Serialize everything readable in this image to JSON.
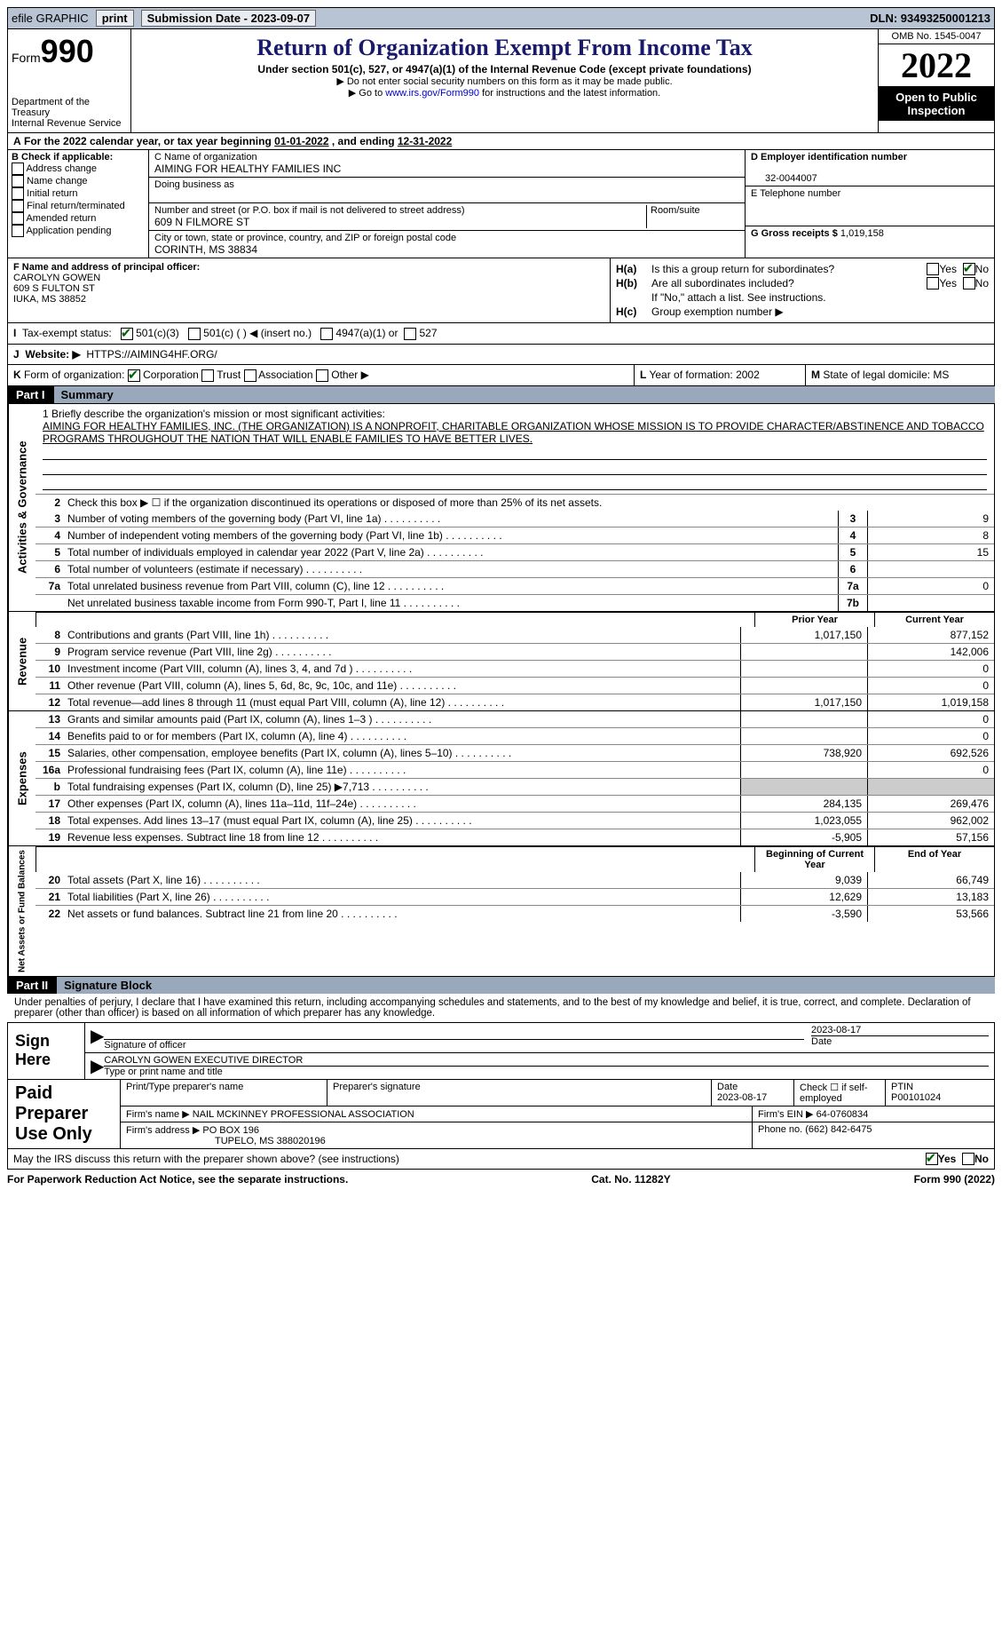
{
  "topbar": {
    "efile": "efile GRAPHIC",
    "print": "print",
    "subdate_label": "Submission Date - 2023-09-07",
    "dln_label": "DLN: 93493250001213"
  },
  "header": {
    "form_prefix": "Form",
    "form_number": "990",
    "dept": "Department of the Treasury",
    "irs": "Internal Revenue Service",
    "title": "Return of Organization Exempt From Income Tax",
    "subtitle": "Under section 501(c), 527, or 4947(a)(1) of the Internal Revenue Code (except private foundations)",
    "note1": "▶ Do not enter social security numbers on this form as it may be made public.",
    "note2_pre": "▶ Go to ",
    "note2_link": "www.irs.gov/Form990",
    "note2_post": " for instructions and the latest information.",
    "omb": "OMB No. 1545-0047",
    "year": "2022",
    "inspect": "Open to Public Inspection"
  },
  "lineA": {
    "text_a": "A",
    "text": "For the 2022 calendar year, or tax year beginning ",
    "beg": "01-01-2022",
    "mid": " , and ending ",
    "end": "12-31-2022"
  },
  "colB": {
    "header": "B Check if applicable:",
    "opts": [
      "Address change",
      "Name change",
      "Initial return",
      "Final return/terminated",
      "Amended return",
      "Application pending"
    ]
  },
  "colC": {
    "name_label": "C Name of organization",
    "name": "AIMING FOR HEALTHY FAMILIES INC",
    "dba_label": "Doing business as",
    "addr_label": "Number and street (or P.O. box if mail is not delivered to street address)",
    "room_label": "Room/suite",
    "addr": "609 N FILMORE ST",
    "city_label": "City or town, state or province, country, and ZIP or foreign postal code",
    "city": "CORINTH, MS  38834"
  },
  "colDE": {
    "d_label": "D Employer identification number",
    "d_val": "32-0044007",
    "e_label": "E Telephone number",
    "g_label": "G Gross receipts $",
    "g_val": "1,019,158"
  },
  "colF": {
    "label": "F  Name and address of principal officer:",
    "name": "CAROLYN GOWEN",
    "addr": "609 S FULTON ST",
    "city": "IUKA, MS  38852"
  },
  "colH": {
    "a_label": "H(a)",
    "a_text": "Is this a group return for subordinates?",
    "a_yes": "Yes",
    "a_no": "No",
    "b_label": "H(b)",
    "b_text": "Are all subordinates included?",
    "b_note": "If \"No,\" attach a list. See instructions.",
    "c_label": "H(c)",
    "c_text": "Group exemption number ▶"
  },
  "lineI": {
    "label": "I",
    "text": "Tax-exempt status:",
    "o1": "501(c)(3)",
    "o2": "501(c) (  ) ◀ (insert no.)",
    "o3": "4947(a)(1) or",
    "o4": "527"
  },
  "lineJ": {
    "label": "J",
    "text": "Website: ▶",
    "val": "HTTPS://AIMING4HF.ORG/"
  },
  "lineK": {
    "label": "K",
    "text": "Form of organization:",
    "o1": "Corporation",
    "o2": "Trust",
    "o3": "Association",
    "o4": "Other ▶"
  },
  "lineL": {
    "label": "L",
    "text": "Year of formation: 2002"
  },
  "lineM": {
    "label": "M",
    "text": "State of legal domicile: MS"
  },
  "part1": {
    "num": "Part I",
    "title": "Summary"
  },
  "vlabels": {
    "act": "Activities & Governance",
    "rev": "Revenue",
    "exp": "Expenses",
    "net": "Net Assets or Fund Balances"
  },
  "mission": {
    "q": "1  Briefly describe the organization's mission or most significant activities:",
    "text": "AIMING FOR HEALTHY FAMILIES, INC. (THE ORGANIZATION) IS A NONPROFIT, CHARITABLE ORGANIZATION WHOSE MISSION IS TO PROVIDE CHARACTER/ABSTINENCE AND TOBACCO PROGRAMS THROUGHOUT THE NATION THAT WILL ENABLE FAMILIES TO HAVE BETTER LIVES."
  },
  "summary": {
    "line2": "Check this box ▶ ☐ if the organization discontinued its operations or disposed of more than 25% of its net assets.",
    "rows_ag": [
      {
        "n": "3",
        "d": "Number of voting members of the governing body (Part VI, line 1a)",
        "b": "3",
        "v": "9"
      },
      {
        "n": "4",
        "d": "Number of independent voting members of the governing body (Part VI, line 1b)",
        "b": "4",
        "v": "8"
      },
      {
        "n": "5",
        "d": "Total number of individuals employed in calendar year 2022 (Part V, line 2a)",
        "b": "5",
        "v": "15"
      },
      {
        "n": "6",
        "d": "Total number of volunteers (estimate if necessary)",
        "b": "6",
        "v": ""
      },
      {
        "n": "7a",
        "d": "Total unrelated business revenue from Part VIII, column (C), line 12",
        "b": "7a",
        "v": "0"
      },
      {
        "n": "",
        "d": "Net unrelated business taxable income from Form 990-T, Part I, line 11",
        "b": "7b",
        "v": ""
      }
    ],
    "col_prior": "Prior Year",
    "col_current": "Current Year",
    "rows_rev": [
      {
        "n": "8",
        "d": "Contributions and grants (Part VIII, line 1h)",
        "p": "1,017,150",
        "c": "877,152"
      },
      {
        "n": "9",
        "d": "Program service revenue (Part VIII, line 2g)",
        "p": "",
        "c": "142,006"
      },
      {
        "n": "10",
        "d": "Investment income (Part VIII, column (A), lines 3, 4, and 7d )",
        "p": "",
        "c": "0"
      },
      {
        "n": "11",
        "d": "Other revenue (Part VIII, column (A), lines 5, 6d, 8c, 9c, 10c, and 11e)",
        "p": "",
        "c": "0"
      },
      {
        "n": "12",
        "d": "Total revenue—add lines 8 through 11 (must equal Part VIII, column (A), line 12)",
        "p": "1,017,150",
        "c": "1,019,158"
      }
    ],
    "rows_exp": [
      {
        "n": "13",
        "d": "Grants and similar amounts paid (Part IX, column (A), lines 1–3 )",
        "p": "",
        "c": "0"
      },
      {
        "n": "14",
        "d": "Benefits paid to or for members (Part IX, column (A), line 4)",
        "p": "",
        "c": "0"
      },
      {
        "n": "15",
        "d": "Salaries, other compensation, employee benefits (Part IX, column (A), lines 5–10)",
        "p": "738,920",
        "c": "692,526"
      },
      {
        "n": "16a",
        "d": "Professional fundraising fees (Part IX, column (A), line 11e)",
        "p": "",
        "c": "0"
      },
      {
        "n": "b",
        "d": "Total fundraising expenses (Part IX, column (D), line 25) ▶7,713",
        "p": "blank",
        "c": "blank"
      },
      {
        "n": "17",
        "d": "Other expenses (Part IX, column (A), lines 11a–11d, 11f–24e)",
        "p": "284,135",
        "c": "269,476"
      },
      {
        "n": "18",
        "d": "Total expenses. Add lines 13–17 (must equal Part IX, column (A), line 25)",
        "p": "1,023,055",
        "c": "962,002"
      },
      {
        "n": "19",
        "d": "Revenue less expenses. Subtract line 18 from line 12",
        "p": "-5,905",
        "c": "57,156"
      }
    ],
    "col_beg": "Beginning of Current Year",
    "col_end": "End of Year",
    "rows_net": [
      {
        "n": "20",
        "d": "Total assets (Part X, line 16)",
        "p": "9,039",
        "c": "66,749"
      },
      {
        "n": "21",
        "d": "Total liabilities (Part X, line 26)",
        "p": "12,629",
        "c": "13,183"
      },
      {
        "n": "22",
        "d": "Net assets or fund balances. Subtract line 21 from line 20",
        "p": "-3,590",
        "c": "53,566"
      }
    ]
  },
  "part2": {
    "num": "Part II",
    "title": "Signature Block"
  },
  "sig": {
    "decl": "Under penalties of perjury, I declare that I have examined this return, including accompanying schedules and statements, and to the best of my knowledge and belief, it is true, correct, and complete. Declaration of preparer (other than officer) is based on all information of which preparer has any knowledge.",
    "sign_here": "Sign Here",
    "sig_officer": "Signature of officer",
    "date": "2023-08-17",
    "date_label": "Date",
    "name": "CAROLYN GOWEN  EXECUTIVE DIRECTOR",
    "name_label": "Type or print name and title"
  },
  "prep": {
    "label": "Paid Preparer Use Only",
    "h1": "Print/Type preparer's name",
    "h2": "Preparer's signature",
    "h3": "Date",
    "h3v": "2023-08-17",
    "h4": "Check ☐ if self-employed",
    "h5": "PTIN",
    "h5v": "P00101024",
    "firm_label": "Firm's name    ▶",
    "firm": "NAIL MCKINNEY PROFESSIONAL ASSOCIATION",
    "ein_label": "Firm's EIN ▶",
    "ein": "64-0760834",
    "addr_label": "Firm's address ▶",
    "addr1": "PO BOX 196",
    "addr2": "TUPELO, MS  388020196",
    "phone_label": "Phone no.",
    "phone": "(662) 842-6475"
  },
  "discuss": {
    "text": "May the IRS discuss this return with the preparer shown above? (see instructions)",
    "yes": "Yes",
    "no": "No"
  },
  "footer": {
    "l": "For Paperwork Reduction Act Notice, see the separate instructions.",
    "m": "Cat. No. 11282Y",
    "r": "Form 990 (2022)"
  }
}
